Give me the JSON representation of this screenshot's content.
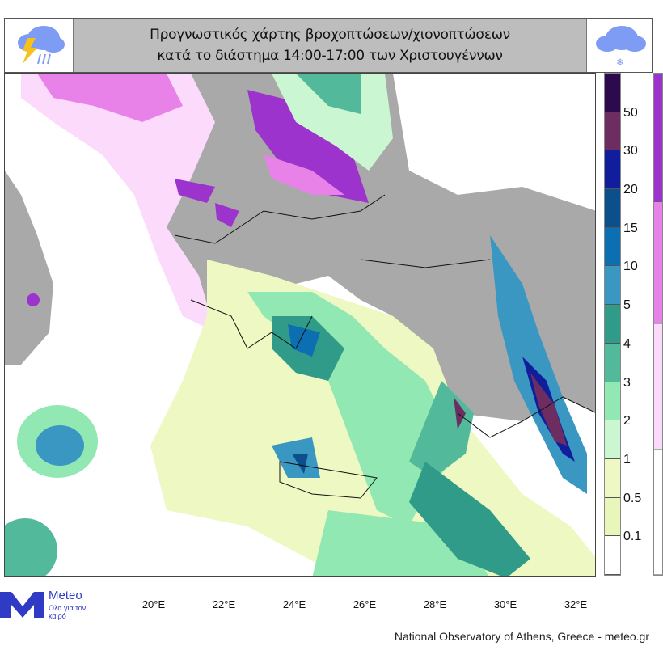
{
  "header": {
    "title_line1": "Προγνωστικός χάρτης βροχοπτώσεων/χιονοπτώσεων",
    "title_line2": "κατά το διάστημα 14:00-17:00 των Χριστουγέννων",
    "left_icon": "cloud-lightning-rain-icon",
    "right_icon": "cloud-snow-icon"
  },
  "legend": {
    "rain_levels": [
      "50",
      "30",
      "20",
      "15",
      "10",
      "5",
      "4",
      "3",
      "2",
      "1",
      "0.5",
      "0.1"
    ],
    "rain_colors": [
      "#2d0a4e",
      "#6e2d60",
      "#101e9c",
      "#0b4f8c",
      "#0c6fb2",
      "#3a97c2",
      "#2f9b88",
      "#52b99a",
      "#92e8b2",
      "#cbf6d2",
      "#eef8c2",
      "#e9f6ba",
      "#ffffff"
    ],
    "snow_colors": [
      "#9c33cc",
      "#e882e8",
      "#fcdafc",
      "#ffffff"
    ]
  },
  "axis": {
    "longitudes": [
      "20°E",
      "22°E",
      "24°E",
      "26°E",
      "28°E",
      "30°E",
      "32°E"
    ]
  },
  "logo": {
    "name": "Meteo",
    "tagline": "Όλα για τον καιρό",
    "color": "#2f3bc4"
  },
  "footer": {
    "credit": "National Observatory of Athens, Greece - meteo.gr"
  }
}
